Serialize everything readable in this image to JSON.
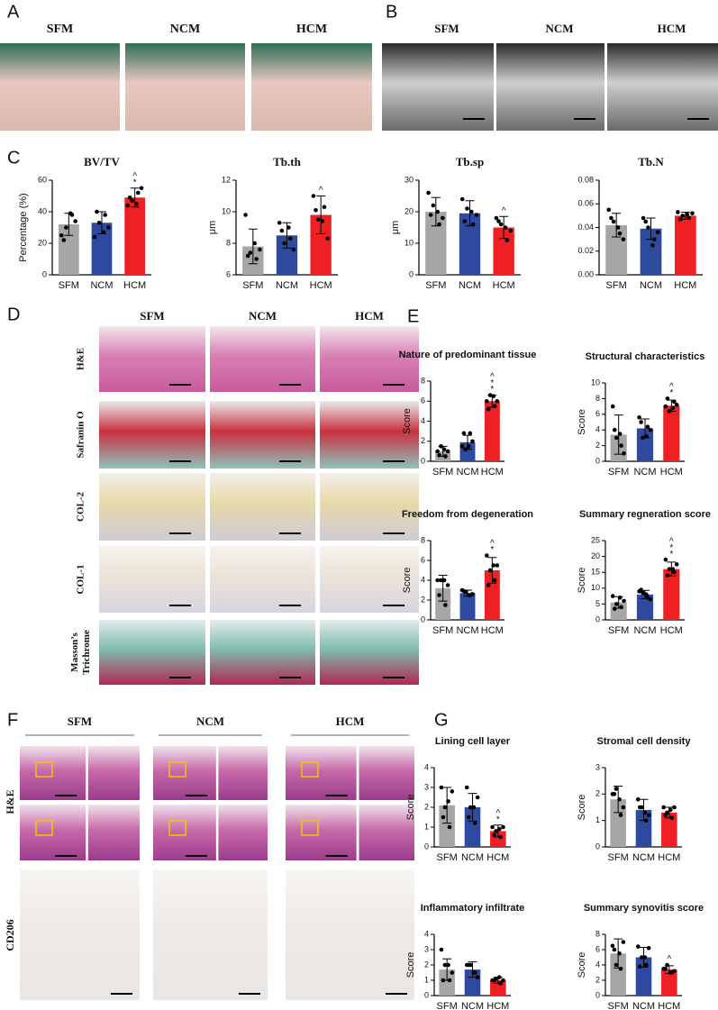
{
  "panels": [
    {
      "letter": "A",
      "columns": [
        "SFM",
        "NCM",
        "HCM"
      ]
    },
    {
      "letter": "B",
      "columns": [
        "SFM",
        "NCM",
        "HCM"
      ]
    },
    {
      "letter": "C"
    },
    {
      "letter": "D",
      "columns": [
        "SFM",
        "NCM",
        "HCM"
      ],
      "rows": [
        [
          "H&E"
        ],
        [
          "Safranin O"
        ],
        [
          "COL-2"
        ],
        [
          "COL-1"
        ],
        [
          "Masson’s",
          "Trichrome"
        ]
      ]
    },
    {
      "letter": "E"
    },
    {
      "letter": "F",
      "columns": [
        "SFM",
        "NCM",
        "HCM"
      ],
      "rows": [
        [
          "H&E"
        ],
        [
          "CD206"
        ]
      ]
    },
    {
      "letter": "G"
    }
  ],
  "chart_data": [
    {
      "type": "bar",
      "title": "BV/TV",
      "y_label": "Percentage (%)",
      "categories": [
        "SFM",
        "NCM",
        "HCM"
      ],
      "colors": [
        "#a6a6a6",
        "#2e4a9e",
        "#ee2024"
      ],
      "values": [
        32,
        33,
        49
      ],
      "errors": [
        7,
        7,
        6
      ],
      "points": [
        [
          25,
          38,
          30,
          34,
          22,
          39
        ],
        [
          24,
          38,
          33,
          30,
          40,
          27
        ],
        [
          44,
          52,
          47,
          55,
          49,
          45
        ]
      ],
      "markers": [
        null,
        null,
        [
          "^",
          "*"
        ]
      ],
      "ylim": [
        0,
        60
      ],
      "yticks": [
        0,
        20,
        40,
        60
      ]
    },
    {
      "type": "bar",
      "title": "Tb.th",
      "y_label": "μm",
      "categories": [
        "SFM",
        "NCM",
        "HCM"
      ],
      "colors": [
        "#a6a6a6",
        "#2e4a9e",
        "#ee2024"
      ],
      "values": [
        7.8,
        8.5,
        9.8
      ],
      "errors": [
        1.1,
        0.8,
        1.2
      ],
      "points": [
        [
          9.8,
          7.0,
          7.4,
          7.6,
          7.2,
          8.0
        ],
        [
          9.3,
          8.3,
          8.0,
          7.6,
          8.8,
          9.0
        ],
        [
          11.0,
          10.3,
          9.5,
          8.3,
          10.1,
          9.4
        ]
      ],
      "markers": [
        null,
        null,
        [
          "^"
        ]
      ],
      "ylim": [
        6,
        12
      ],
      "yticks": [
        6,
        8,
        10,
        12
      ]
    },
    {
      "type": "bar",
      "title": "Tb.sp",
      "y_label": "μm",
      "categories": [
        "SFM",
        "NCM",
        "HCM"
      ],
      "colors": [
        "#a6a6a6",
        "#2e4a9e",
        "#ee2024"
      ],
      "values": [
        20,
        19.5,
        15
      ],
      "errors": [
        4.5,
        4,
        3.5
      ],
      "points": [
        [
          26,
          16,
          22,
          18,
          19,
          20
        ],
        [
          24,
          16,
          21,
          19,
          17,
          20
        ],
        [
          18,
          11,
          16,
          14,
          17,
          15
        ]
      ],
      "markers": [
        null,
        null,
        [
          "^"
        ]
      ],
      "ylim": [
        0,
        30
      ],
      "yticks": [
        0,
        10,
        20,
        30
      ]
    },
    {
      "type": "bar",
      "title": "Tb.N",
      "categories": [
        "SFM",
        "NCM",
        "HCM"
      ],
      "colors": [
        "#a6a6a6",
        "#2e4a9e",
        "#ee2024"
      ],
      "values": [
        0.042,
        0.039,
        0.05
      ],
      "errors": [
        0.01,
        0.009,
        0.003
      ],
      "points": [
        [
          0.055,
          0.035,
          0.045,
          0.03,
          0.048,
          0.04
        ],
        [
          0.048,
          0.03,
          0.04,
          0.036,
          0.045,
          0.025
        ],
        [
          0.053,
          0.048,
          0.05,
          0.052,
          0.047,
          0.051
        ]
      ],
      "markers": [
        null,
        null,
        null
      ],
      "ylim": [
        0,
        0.08
      ],
      "yticks": [
        {
          "value": 0,
          "label": "0.00"
        },
        {
          "value": 0.02,
          "label": "0.02"
        },
        {
          "value": 0.04,
          "label": "0.04"
        },
        {
          "value": 0.06,
          "label": "0.06"
        },
        {
          "value": 0.08,
          "label": "0.08"
        }
      ]
    },
    {
      "type": "bar",
      "title": "Nature of predominant tissue",
      "y_label": "Score",
      "categories": [
        "SFM",
        "NCM",
        "HCM"
      ],
      "colors": [
        "#a6a6a6",
        "#2e4a9e",
        "#ee2024"
      ],
      "values": [
        1,
        1.9,
        6
      ],
      "errors": [
        0.5,
        0.7,
        0.6
      ],
      "points": [
        [
          1,
          0.5,
          1.5,
          1,
          0.6,
          1.2
        ],
        [
          1.5,
          2.8,
          1.2,
          2,
          2.8,
          1.5
        ],
        [
          6,
          5.5,
          6.6,
          6,
          5.2,
          6.5
        ]
      ],
      "markers": [
        null,
        null,
        [
          "^",
          "*",
          "*"
        ]
      ],
      "ylim": [
        0,
        8
      ],
      "yticks": [
        0,
        2,
        4,
        6,
        8
      ]
    },
    {
      "type": "bar",
      "title": "Structural characteristics",
      "y_label": "Score",
      "categories": [
        "SFM",
        "NCM",
        "HCM"
      ],
      "colors": [
        "#a6a6a6",
        "#2e4a9e",
        "#ee2024"
      ],
      "values": [
        3.4,
        4.2,
        7.1
      ],
      "errors": [
        2.5,
        1.2,
        0.7
      ],
      "points": [
        [
          7,
          2,
          3,
          1,
          4,
          3.5
        ],
        [
          5.6,
          4.4,
          3,
          4,
          5,
          3.2
        ],
        [
          7,
          7.6,
          6.4,
          7.2,
          8,
          6.8
        ]
      ],
      "markers": [
        null,
        null,
        [
          "^",
          "*"
        ]
      ],
      "ylim": [
        0,
        10
      ],
      "yticks": [
        0,
        2,
        4,
        6,
        8,
        10
      ]
    },
    {
      "type": "bar",
      "title": "Freedom from degeneration",
      "y_label": "Score",
      "categories": [
        "SFM",
        "NCM",
        "HCM"
      ],
      "colors": [
        "#a6a6a6",
        "#2e4a9e",
        "#ee2024"
      ],
      "values": [
        3.2,
        2.7,
        5
      ],
      "errors": [
        1.3,
        0.3,
        1.3
      ],
      "points": [
        [
          4,
          1.5,
          4,
          3.5,
          2.5,
          4
        ],
        [
          3,
          2.5,
          2.8,
          2.6,
          2.9,
          2.5
        ],
        [
          6.5,
          4,
          5,
          5.5,
          3.5,
          5.5
        ]
      ],
      "markers": [
        null,
        null,
        [
          "^",
          "*"
        ]
      ],
      "ylim": [
        0,
        8
      ],
      "yticks": [
        0,
        2,
        4,
        6,
        8
      ]
    },
    {
      "type": "bar",
      "title": "Summary regneration score",
      "y_label": "Score",
      "categories": [
        "SFM",
        "NCM",
        "HCM"
      ],
      "colors": [
        "#a6a6a6",
        "#2e4a9e",
        "#ee2024"
      ],
      "values": [
        5.5,
        8,
        16
      ],
      "errors": [
        1.8,
        1.3,
        2.2
      ],
      "points": [
        [
          7.5,
          4,
          5,
          6,
          3.5,
          7
        ],
        [
          9,
          7,
          8.5,
          6.5,
          9.5,
          8
        ],
        [
          19,
          15,
          16,
          17.5,
          14,
          16
        ]
      ],
      "markers": [
        null,
        null,
        [
          "^",
          "*",
          "*"
        ]
      ],
      "ylim": [
        0,
        25
      ],
      "yticks": [
        0,
        5,
        10,
        15,
        20,
        25
      ]
    },
    {
      "type": "bar",
      "title": "Lining cell layer",
      "y_label": "Score",
      "categories": [
        "SFM",
        "NCM",
        "HCM"
      ],
      "colors": [
        "#a6a6a6",
        "#2e4a9e",
        "#ee2024"
      ],
      "values": [
        2.1,
        2,
        0.8
      ],
      "errors": [
        0.9,
        0.7,
        0.3
      ],
      "points": [
        [
          3,
          1,
          2,
          2.8,
          1.5,
          2.3
        ],
        [
          3,
          1.2,
          2,
          2.5,
          1.5,
          2
        ],
        [
          1,
          0.5,
          0.8,
          1,
          0.6,
          0.9
        ]
      ],
      "markers": [
        null,
        null,
        [
          "^",
          "*"
        ]
      ],
      "ylim": [
        0,
        4
      ],
      "yticks": [
        0,
        1,
        2,
        3,
        4
      ]
    },
    {
      "type": "bar",
      "title": "Stromal cell density",
      "y_label": "Score",
      "categories": [
        "SFM",
        "NCM",
        "HCM"
      ],
      "colors": [
        "#a6a6a6",
        "#2e4a9e",
        "#ee2024"
      ],
      "values": [
        1.8,
        1.4,
        1.3
      ],
      "errors": [
        0.5,
        0.4,
        0.2
      ],
      "points": [
        [
          2,
          1.2,
          2.2,
          1.5,
          2,
          1.8
        ],
        [
          1.8,
          1,
          1.5,
          1.2,
          1.5,
          1.3
        ],
        [
          1.5,
          1.1,
          1.3,
          1.5,
          1.2,
          1.4
        ]
      ],
      "markers": [
        null,
        null,
        null
      ],
      "ylim": [
        0,
        3
      ],
      "yticks": [
        0,
        1,
        2,
        3
      ]
    },
    {
      "type": "bar",
      "title": "Inflammatory infiltrate",
      "y_label": "Score",
      "categories": [
        "SFM",
        "NCM",
        "HCM"
      ],
      "colors": [
        "#a6a6a6",
        "#2e4a9e",
        "#ee2024"
      ],
      "values": [
        1.7,
        1.7,
        1
      ],
      "errors": [
        0.7,
        0.5,
        0.2
      ],
      "points": [
        [
          3,
          1,
          2,
          1.5,
          1,
          2
        ],
        [
          2,
          1.5,
          2,
          1.2,
          2,
          1.5
        ],
        [
          1,
          0.8,
          1.1,
          1,
          1,
          1.2
        ]
      ],
      "markers": [
        null,
        null,
        null
      ],
      "ylim": [
        0,
        4
      ],
      "yticks": [
        0,
        1,
        2,
        3,
        4
      ]
    },
    {
      "type": "bar",
      "title": "Summary synovitis score",
      "y_label": "Score",
      "categories": [
        "SFM",
        "NCM",
        "HCM"
      ],
      "colors": [
        "#a6a6a6",
        "#2e4a9e",
        "#ee2024"
      ],
      "values": [
        5.5,
        5,
        3.4
      ],
      "errors": [
        1.9,
        1.3,
        0.5
      ],
      "points": [
        [
          6.5,
          3.5,
          4,
          7,
          6,
          5.5
        ],
        [
          6.4,
          4,
          5,
          6.2,
          3.8,
          5
        ],
        [
          3.5,
          3,
          4,
          3.2,
          3.5,
          3
        ]
      ],
      "markers": [
        null,
        null,
        [
          "^"
        ]
      ],
      "ylim": [
        0,
        8
      ],
      "yticks": [
        0,
        2,
        4,
        6,
        8
      ]
    }
  ]
}
